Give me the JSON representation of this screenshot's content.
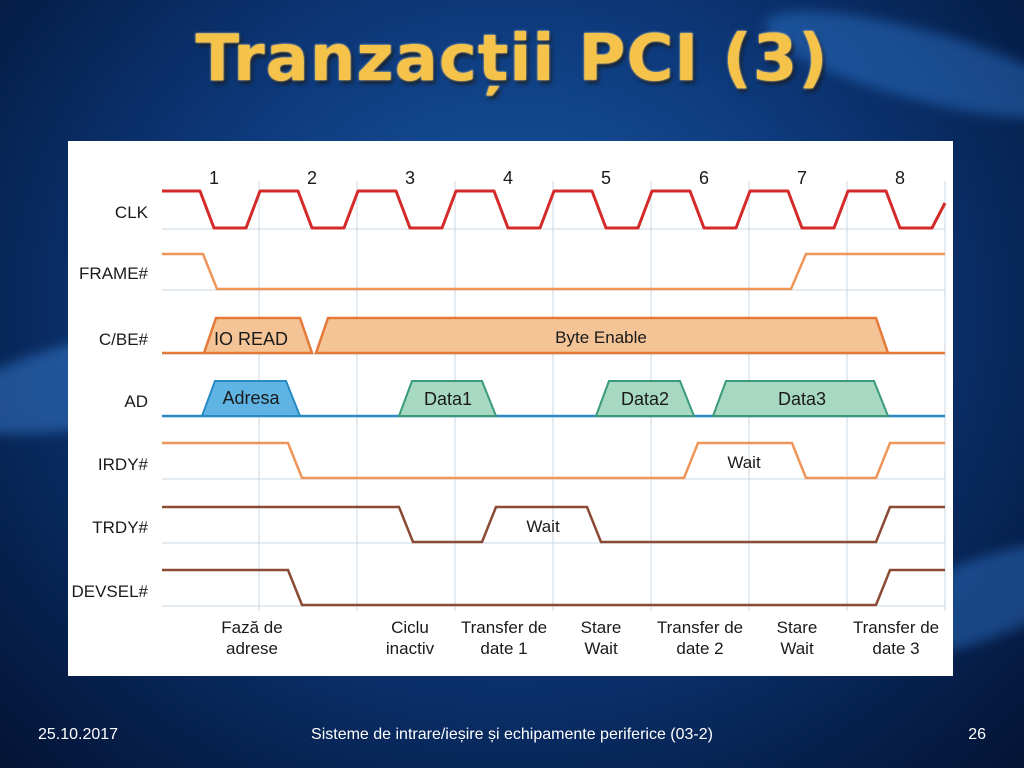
{
  "slide": {
    "title": "Tranzacții PCI (3)",
    "footer_date": "25.10.2017",
    "footer_course": "Sisteme de intrare/ieșire și echipamente periferice (03-2)",
    "page_number": "26"
  },
  "diagram": {
    "cycle_numbers": [
      "1",
      "2",
      "3",
      "4",
      "5",
      "6",
      "7",
      "8"
    ],
    "signals": [
      "CLK",
      "FRAME#",
      "C/BE#",
      "AD",
      "IRDY#",
      "TRDY#",
      "DEVSEL#"
    ],
    "cbe_labels": [
      "IO READ",
      "Byte Enable"
    ],
    "ad_labels": [
      "Adresa",
      "Data1",
      "Data2",
      "Data3"
    ],
    "irdy_note": "Wait",
    "trdy_note": "Wait",
    "phases": [
      [
        "Fază de",
        "adrese"
      ],
      [
        "Ciclu",
        "inactiv"
      ],
      [
        "Transfer de",
        "date 1"
      ],
      [
        "Stare",
        "Wait"
      ],
      [
        "Transfer de",
        "date 2"
      ],
      [
        "Stare",
        "Wait"
      ],
      [
        "Transfer de",
        "date 3"
      ]
    ],
    "colors": {
      "clk": "#d42a2a",
      "frame": "#f0965a",
      "cbe_fill": "#f4c496",
      "cbe_line": "#e47a3a",
      "ad_line": "#2a8ac4",
      "adresa_fill": "#5fb4e4",
      "data_fill": "#a6d8c2",
      "data_line": "#3a9a7a",
      "irdy": "#f0965a",
      "trdy": "#8a4a34",
      "devsel": "#8a4a34",
      "grid": "#c9d8e6"
    }
  }
}
